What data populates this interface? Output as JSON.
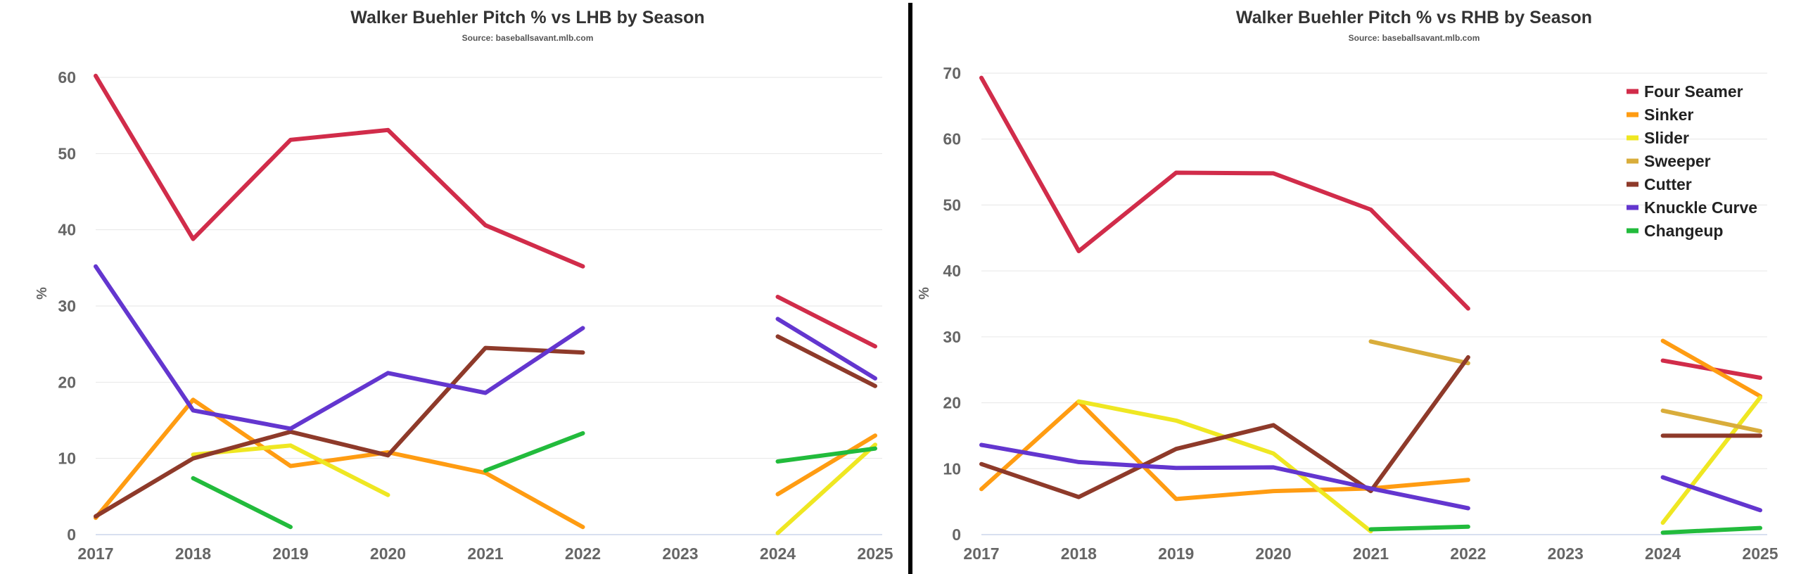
{
  "chart_data": [
    {
      "type": "line",
      "title": "Walker Buehler Pitch % vs LHB by Season",
      "subtitle": "Source: baseballsavant.mlb.com",
      "ylabel": "%",
      "categories": [
        "2017",
        "2018",
        "2019",
        "2020",
        "2021",
        "2022",
        "2023",
        "2024",
        "2025"
      ],
      "ylim": [
        0,
        60
      ],
      "yticks": [
        0,
        10,
        20,
        30,
        40,
        50,
        60
      ],
      "grid": true,
      "series": [
        {
          "name": "Four Seamer",
          "color": "#d12c4a",
          "values": [
            60.2,
            38.8,
            51.8,
            53.1,
            40.6,
            35.2,
            null,
            31.2,
            24.7
          ]
        },
        {
          "name": "Sinker",
          "color": "#ff9c12",
          "values": [
            2.2,
            17.7,
            9.0,
            10.8,
            8.1,
            1.0,
            null,
            5.3,
            13.0
          ]
        },
        {
          "name": "Slider",
          "color": "#efe722",
          "values": [
            null,
            10.5,
            11.7,
            5.2,
            null,
            null,
            null,
            0.2,
            11.8
          ]
        },
        {
          "name": "Sweeper",
          "color": "#d9ad3b",
          "values": [
            null,
            null,
            null,
            null,
            null,
            null,
            null,
            null,
            null
          ]
        },
        {
          "name": "Cutter",
          "color": "#8e3a2a",
          "values": [
            2.4,
            10.0,
            13.5,
            10.4,
            24.5,
            23.9,
            null,
            26.0,
            19.5
          ]
        },
        {
          "name": "Knuckle Curve",
          "color": "#6336cf",
          "values": [
            35.2,
            16.3,
            13.9,
            21.2,
            18.6,
            27.1,
            null,
            28.3,
            20.5
          ]
        },
        {
          "name": "Changeup",
          "color": "#22bb3c",
          "values": [
            null,
            7.4,
            1.0,
            null,
            8.4,
            13.3,
            null,
            9.6,
            11.3
          ]
        }
      ]
    },
    {
      "type": "line",
      "title": "Walker Buehler Pitch % vs RHB by Season",
      "subtitle": "Source: baseballsavant.mlb.com",
      "ylabel": "%",
      "categories": [
        "2017",
        "2018",
        "2019",
        "2020",
        "2021",
        "2022",
        "2023",
        "2024",
        "2025"
      ],
      "ylim": [
        0,
        70
      ],
      "yticks": [
        0,
        10,
        20,
        30,
        40,
        50,
        60,
        70
      ],
      "grid": true,
      "legend": "top-right",
      "series": [
        {
          "name": "Four Seamer",
          "color": "#d12c4a",
          "values": [
            69.3,
            43.0,
            54.9,
            54.8,
            49.3,
            34.3,
            null,
            26.4,
            23.8
          ]
        },
        {
          "name": "Sinker",
          "color": "#ff9c12",
          "values": [
            6.9,
            20.2,
            5.4,
            6.6,
            7.0,
            8.3,
            null,
            29.4,
            21.0
          ]
        },
        {
          "name": "Slider",
          "color": "#efe722",
          "values": [
            null,
            20.2,
            17.3,
            12.3,
            0.5,
            null,
            null,
            1.8,
            20.8
          ]
        },
        {
          "name": "Sweeper",
          "color": "#d9ad3b",
          "values": [
            null,
            null,
            null,
            null,
            29.3,
            26.0,
            null,
            18.8,
            15.7
          ]
        },
        {
          "name": "Cutter",
          "color": "#8e3a2a",
          "values": [
            10.7,
            5.7,
            13.0,
            16.6,
            6.6,
            26.9,
            null,
            15.0,
            15.0
          ]
        },
        {
          "name": "Knuckle Curve",
          "color": "#6336cf",
          "values": [
            13.6,
            11.0,
            10.1,
            10.2,
            7.0,
            4.0,
            null,
            8.7,
            3.7
          ]
        },
        {
          "name": "Changeup",
          "color": "#22bb3c",
          "values": [
            null,
            null,
            null,
            null,
            0.8,
            1.2,
            null,
            0.3,
            1.0
          ]
        }
      ]
    }
  ]
}
